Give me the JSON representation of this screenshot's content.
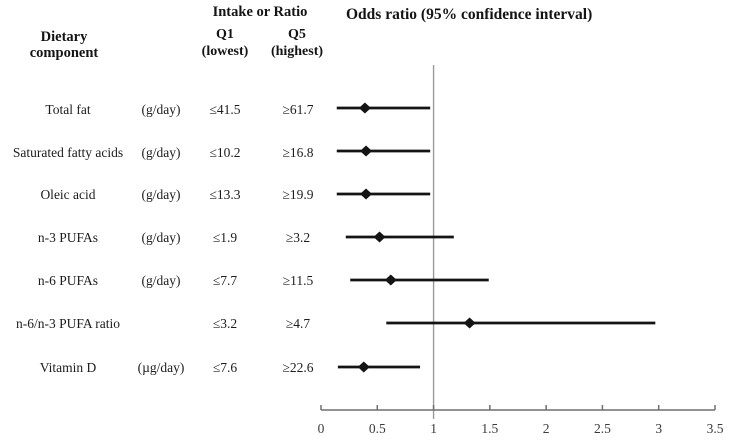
{
  "table": {
    "component_header": "Dietary\ncomponent",
    "intake_header": "Intake or Ratio",
    "q1_header": "Q1\n(lowest)",
    "q5_header": "Q5\n(highest)",
    "rows": [
      {
        "name": "Total fat",
        "unit": "(g/day)",
        "q1": "≤41.5",
        "q5": "≥61.7"
      },
      {
        "name": "Saturated fatty acids",
        "unit": "(g/day)",
        "q1": "≤10.2",
        "q5": "≥16.8"
      },
      {
        "name": "Oleic acid",
        "unit": "(g/day)",
        "q1": "≤13.3",
        "q5": "≥19.9"
      },
      {
        "name": "n-3 PUFAs",
        "unit": "(g/day)",
        "q1": "≤1.9",
        "q5": "≥3.2"
      },
      {
        "name": "n-6 PUFAs",
        "unit": "(g/day)",
        "q1": "≤7.7",
        "q5": "≥11.5"
      },
      {
        "name": "n-6/n-3 PUFA ratio",
        "unit": "",
        "q1": "≤3.2",
        "q5": "≥4.7"
      },
      {
        "name": "Vitamin D",
        "unit": "(µg/day)",
        "q1": "≤7.6",
        "q5": "≥22.6"
      }
    ]
  },
  "plot": {
    "title": "Odds ratio (95% confidence interval)"
  },
  "colors": {
    "text": "#1c1c1c",
    "marker_black": "#141414",
    "axis_gray": "#6f6f6f",
    "reference_line_gray": "#9b9b9b",
    "tick_label_gray": "#3a3a3a"
  },
  "chart_data": {
    "type": "scatter",
    "subtype": "forest-plot",
    "title": "Odds ratio (95% confidence interval)",
    "xlabel": "Odds ratio",
    "xlim": [
      0,
      3.5
    ],
    "xticks": [
      0,
      0.5,
      1,
      1.5,
      2,
      2.5,
      3,
      3.5
    ],
    "reference_line_x": 1,
    "grid": false,
    "legend": false,
    "categories": [
      "Total fat",
      "Saturated fatty acids",
      "Oleic acid",
      "n-3 PUFAs",
      "n-6 PUFAs",
      "n-6/n-3 PUFA ratio",
      "Vitamin D"
    ],
    "points": [
      {
        "or": 0.39,
        "ci_low": 0.14,
        "ci_high": 0.97
      },
      {
        "or": 0.4,
        "ci_low": 0.14,
        "ci_high": 0.97
      },
      {
        "or": 0.4,
        "ci_low": 0.14,
        "ci_high": 0.97
      },
      {
        "or": 0.52,
        "ci_low": 0.22,
        "ci_high": 1.18
      },
      {
        "or": 0.62,
        "ci_low": 0.26,
        "ci_high": 1.49
      },
      {
        "or": 1.32,
        "ci_low": 0.58,
        "ci_high": 2.97
      },
      {
        "or": 0.38,
        "ci_low": 0.15,
        "ci_high": 0.88
      }
    ]
  }
}
